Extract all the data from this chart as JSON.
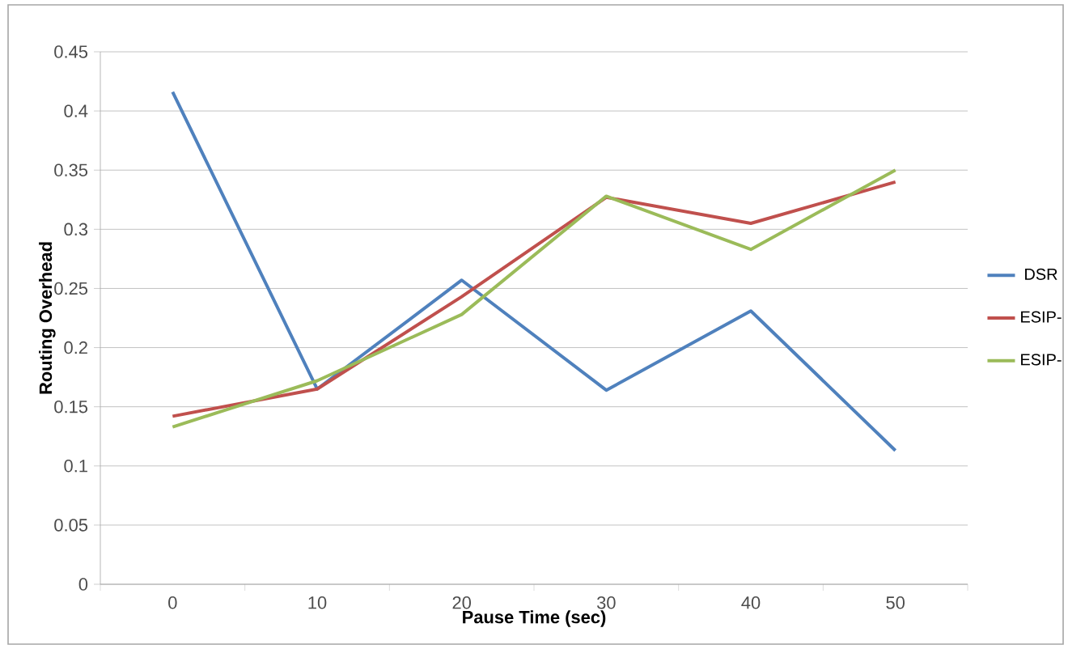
{
  "chart_data": {
    "type": "line",
    "xlabel": "Pause Time (sec)",
    "ylabel": "Routing Overhead",
    "categories": [
      "0",
      "10",
      "20",
      "30",
      "40",
      "50"
    ],
    "series": [
      {
        "name": "DSR",
        "color": "#4f81bd",
        "values": [
          0.416,
          0.165,
          0.257,
          0.164,
          0.231,
          0.113
        ]
      },
      {
        "name": "ESIP-",
        "color": "#c0504d",
        "values": [
          0.142,
          0.165,
          0.243,
          0.327,
          0.305,
          0.34
        ]
      },
      {
        "name": "ESIP-",
        "color": "#9bbb59",
        "values": [
          0.133,
          0.172,
          0.228,
          0.328,
          0.283,
          0.35
        ]
      }
    ],
    "ylim": [
      0,
      0.45
    ],
    "yticks": [
      0,
      0.05,
      0.1,
      0.15,
      0.2,
      0.25,
      0.3,
      0.35,
      0.4,
      0.45
    ],
    "grid": "y",
    "legend": "right",
    "marker": "none",
    "line_style": "solid"
  }
}
